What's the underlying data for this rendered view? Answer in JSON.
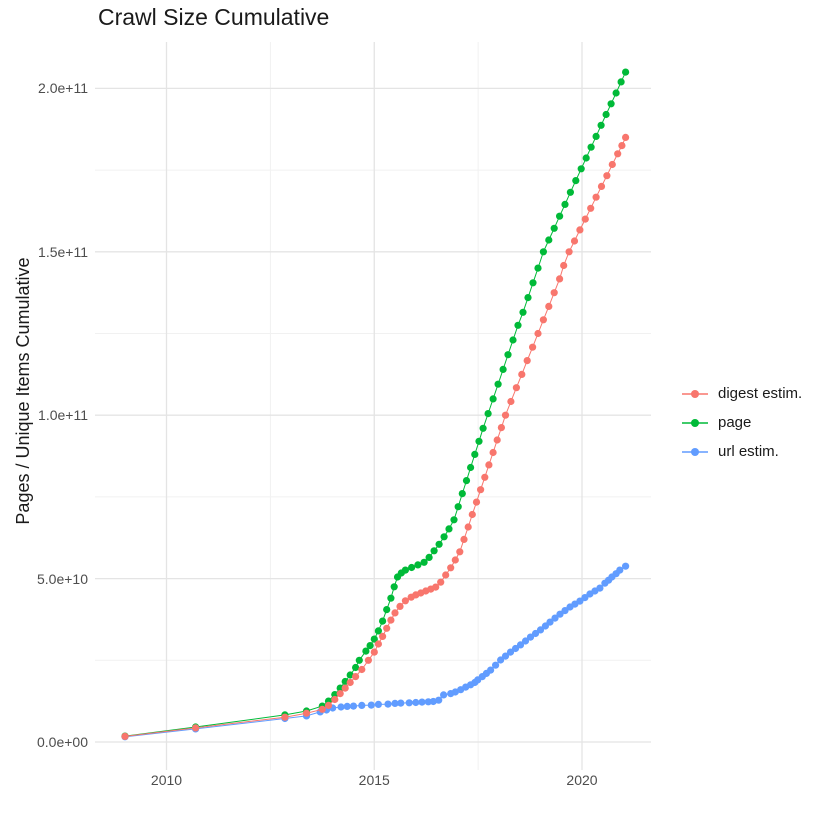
{
  "chart_data": {
    "type": "scatter",
    "title": "Crawl Size Cumulative",
    "xlabel": "",
    "ylabel": "Pages / Unique Items Cumulative",
    "legend_position": "right",
    "grid": true,
    "value_scale": "y values in billions (1e9)",
    "x_axis": {
      "range": [
        2008.4,
        2021.65
      ],
      "ticks": [
        {
          "value": 2010,
          "label": "2010"
        },
        {
          "value": 2015,
          "label": "2015"
        },
        {
          "value": 2020,
          "label": "2020"
        }
      ],
      "minor": [
        2012.5,
        2017.5
      ]
    },
    "y_axis": {
      "range": [
        -8.5,
        215
      ],
      "ticks": [
        {
          "value": 0,
          "label": "0.0e+00"
        },
        {
          "value": 50,
          "label": "5.0e+10"
        },
        {
          "value": 100,
          "label": "1.0e+11"
        },
        {
          "value": 150,
          "label": "1.5e+11"
        },
        {
          "value": 200,
          "label": "2.0e+11"
        }
      ],
      "minor": [
        25,
        75,
        125,
        175
      ]
    },
    "series": [
      {
        "name": "digest estim.",
        "slug": "digest-estim",
        "color": "#F8766D",
        "points": [
          [
            2009.0,
            1.7
          ],
          [
            2010.7,
            4.3
          ],
          [
            2012.85,
            7.6
          ],
          [
            2013.37,
            8.8
          ],
          [
            2013.75,
            10
          ],
          [
            2013.9,
            11.2
          ],
          [
            2014.05,
            13
          ],
          [
            2014.18,
            14.8
          ],
          [
            2014.3,
            16.5
          ],
          [
            2014.42,
            18.2
          ],
          [
            2014.55,
            20
          ],
          [
            2014.7,
            22.2
          ],
          [
            2014.86,
            25
          ],
          [
            2015.0,
            27.5
          ],
          [
            2015.1,
            30
          ],
          [
            2015.2,
            32.3
          ],
          [
            2015.3,
            34.8
          ],
          [
            2015.4,
            37.3
          ],
          [
            2015.5,
            39.5
          ],
          [
            2015.62,
            41.5
          ],
          [
            2015.75,
            43.2
          ],
          [
            2015.89,
            44.3
          ],
          [
            2016.0,
            45
          ],
          [
            2016.12,
            45.6
          ],
          [
            2016.24,
            46.2
          ],
          [
            2016.36,
            46.8
          ],
          [
            2016.48,
            47.4
          ],
          [
            2016.6,
            48.9
          ],
          [
            2016.72,
            51.1
          ],
          [
            2016.84,
            53.3
          ],
          [
            2016.95,
            55.7
          ],
          [
            2017.06,
            58.2
          ],
          [
            2017.16,
            62
          ],
          [
            2017.26,
            65.8
          ],
          [
            2017.36,
            69.6
          ],
          [
            2017.46,
            73.4
          ],
          [
            2017.56,
            77.2
          ],
          [
            2017.66,
            81
          ],
          [
            2017.76,
            84.8
          ],
          [
            2017.86,
            88.6
          ],
          [
            2017.96,
            92.4
          ],
          [
            2018.06,
            96.2
          ],
          [
            2018.16,
            100
          ],
          [
            2018.29,
            104.2
          ],
          [
            2018.42,
            108.4
          ],
          [
            2018.55,
            112.5
          ],
          [
            2018.68,
            116.7
          ],
          [
            2018.81,
            120.8
          ],
          [
            2018.94,
            125
          ],
          [
            2019.07,
            129.2
          ],
          [
            2019.2,
            133.3
          ],
          [
            2019.33,
            137.5
          ],
          [
            2019.46,
            141.7
          ],
          [
            2019.56,
            145.8
          ],
          [
            2019.69,
            150
          ],
          [
            2019.82,
            153.3
          ],
          [
            2019.95,
            156.7
          ],
          [
            2020.08,
            160
          ],
          [
            2020.21,
            163.3
          ],
          [
            2020.34,
            166.7
          ],
          [
            2020.47,
            170
          ],
          [
            2020.6,
            173.3
          ],
          [
            2020.73,
            176.7
          ],
          [
            2020.86,
            180
          ],
          [
            2020.96,
            182.5
          ],
          [
            2021.05,
            185
          ]
        ]
      },
      {
        "name": "page",
        "slug": "page",
        "color": "#00BA38",
        "points": [
          [
            2009.0,
            1.8
          ],
          [
            2010.7,
            4.6
          ],
          [
            2012.85,
            8.3
          ],
          [
            2013.37,
            9.5
          ],
          [
            2013.75,
            11
          ],
          [
            2013.9,
            12.5
          ],
          [
            2014.05,
            14.5
          ],
          [
            2014.18,
            16.5
          ],
          [
            2014.3,
            18.5
          ],
          [
            2014.42,
            20.5
          ],
          [
            2014.55,
            22.8
          ],
          [
            2014.64,
            25
          ],
          [
            2014.8,
            27.8
          ],
          [
            2014.9,
            29.5
          ],
          [
            2015.0,
            31.5
          ],
          [
            2015.1,
            34
          ],
          [
            2015.2,
            37
          ],
          [
            2015.3,
            40.5
          ],
          [
            2015.4,
            44
          ],
          [
            2015.48,
            47.5
          ],
          [
            2015.56,
            50.5
          ],
          [
            2015.65,
            51.7
          ],
          [
            2015.75,
            52.6
          ],
          [
            2015.9,
            53.4
          ],
          [
            2016.05,
            54.2
          ],
          [
            2016.2,
            55
          ],
          [
            2016.32,
            56.5
          ],
          [
            2016.44,
            58.5
          ],
          [
            2016.56,
            60.5
          ],
          [
            2016.68,
            62.8
          ],
          [
            2016.8,
            65.2
          ],
          [
            2016.92,
            68
          ],
          [
            2017.02,
            72
          ],
          [
            2017.12,
            76
          ],
          [
            2017.22,
            80
          ],
          [
            2017.32,
            84
          ],
          [
            2017.42,
            88
          ],
          [
            2017.52,
            92
          ],
          [
            2017.62,
            96
          ],
          [
            2017.74,
            100.5
          ],
          [
            2017.86,
            105
          ],
          [
            2017.98,
            109.5
          ],
          [
            2018.1,
            114
          ],
          [
            2018.22,
            118.5
          ],
          [
            2018.34,
            123
          ],
          [
            2018.46,
            127.5
          ],
          [
            2018.58,
            131.5
          ],
          [
            2018.7,
            136
          ],
          [
            2018.82,
            140.5
          ],
          [
            2018.94,
            145
          ],
          [
            2019.07,
            150
          ],
          [
            2019.2,
            153.6
          ],
          [
            2019.33,
            157.2
          ],
          [
            2019.46,
            160.9
          ],
          [
            2019.59,
            164.5
          ],
          [
            2019.72,
            168.2
          ],
          [
            2019.85,
            171.8
          ],
          [
            2019.98,
            175.4
          ],
          [
            2020.1,
            178.7
          ],
          [
            2020.22,
            182
          ],
          [
            2020.34,
            185.3
          ],
          [
            2020.46,
            188.7
          ],
          [
            2020.58,
            192
          ],
          [
            2020.7,
            195.3
          ],
          [
            2020.82,
            198.6
          ],
          [
            2020.94,
            202
          ],
          [
            2021.05,
            205
          ]
        ]
      },
      {
        "name": "url estim.",
        "slug": "url-estim",
        "color": "#619CFF",
        "points": [
          [
            2009.0,
            1.6
          ],
          [
            2010.7,
            4.0
          ],
          [
            2012.85,
            7.2
          ],
          [
            2013.37,
            8.0
          ],
          [
            2013.7,
            9.2
          ],
          [
            2013.85,
            9.8
          ],
          [
            2014.0,
            10.4
          ],
          [
            2014.2,
            10.7
          ],
          [
            2014.35,
            10.9
          ],
          [
            2014.5,
            11.0
          ],
          [
            2014.7,
            11.2
          ],
          [
            2014.93,
            11.3
          ],
          [
            2015.1,
            11.5
          ],
          [
            2015.33,
            11.6
          ],
          [
            2015.5,
            11.8
          ],
          [
            2015.64,
            11.9
          ],
          [
            2015.84,
            12.0
          ],
          [
            2016.0,
            12.1
          ],
          [
            2016.15,
            12.2
          ],
          [
            2016.3,
            12.3
          ],
          [
            2016.42,
            12.4
          ],
          [
            2016.55,
            12.8
          ],
          [
            2016.67,
            14.4
          ],
          [
            2016.84,
            14.8
          ],
          [
            2016.95,
            15.3
          ],
          [
            2017.08,
            16.0
          ],
          [
            2017.2,
            16.8
          ],
          [
            2017.32,
            17.5
          ],
          [
            2017.42,
            18.2
          ],
          [
            2017.49,
            19.0
          ],
          [
            2017.6,
            20.0
          ],
          [
            2017.7,
            21.0
          ],
          [
            2017.8,
            22.0
          ],
          [
            2017.92,
            23.5
          ],
          [
            2018.04,
            25.1
          ],
          [
            2018.16,
            26.3
          ],
          [
            2018.28,
            27.5
          ],
          [
            2018.4,
            28.6
          ],
          [
            2018.52,
            29.7
          ],
          [
            2018.64,
            30.9
          ],
          [
            2018.76,
            32.1
          ],
          [
            2018.88,
            33.2
          ],
          [
            2019.0,
            34.3
          ],
          [
            2019.12,
            35.5
          ],
          [
            2019.23,
            36.7
          ],
          [
            2019.35,
            37.9
          ],
          [
            2019.47,
            39.1
          ],
          [
            2019.59,
            40.2
          ],
          [
            2019.71,
            41.3
          ],
          [
            2019.83,
            42.2
          ],
          [
            2019.95,
            43.1
          ],
          [
            2020.07,
            44.2
          ],
          [
            2020.19,
            45.3
          ],
          [
            2020.31,
            46.2
          ],
          [
            2020.43,
            47.1
          ],
          [
            2020.55,
            48.6
          ],
          [
            2020.64,
            49.5
          ],
          [
            2020.72,
            50.5
          ],
          [
            2020.82,
            51.5
          ],
          [
            2020.91,
            52.6
          ],
          [
            2021.05,
            53.8
          ]
        ]
      }
    ],
    "style": {
      "major_grid_color": "#e4e4e4",
      "minor_grid_color": "#f1f1f1",
      "background": "#ffffff"
    }
  }
}
